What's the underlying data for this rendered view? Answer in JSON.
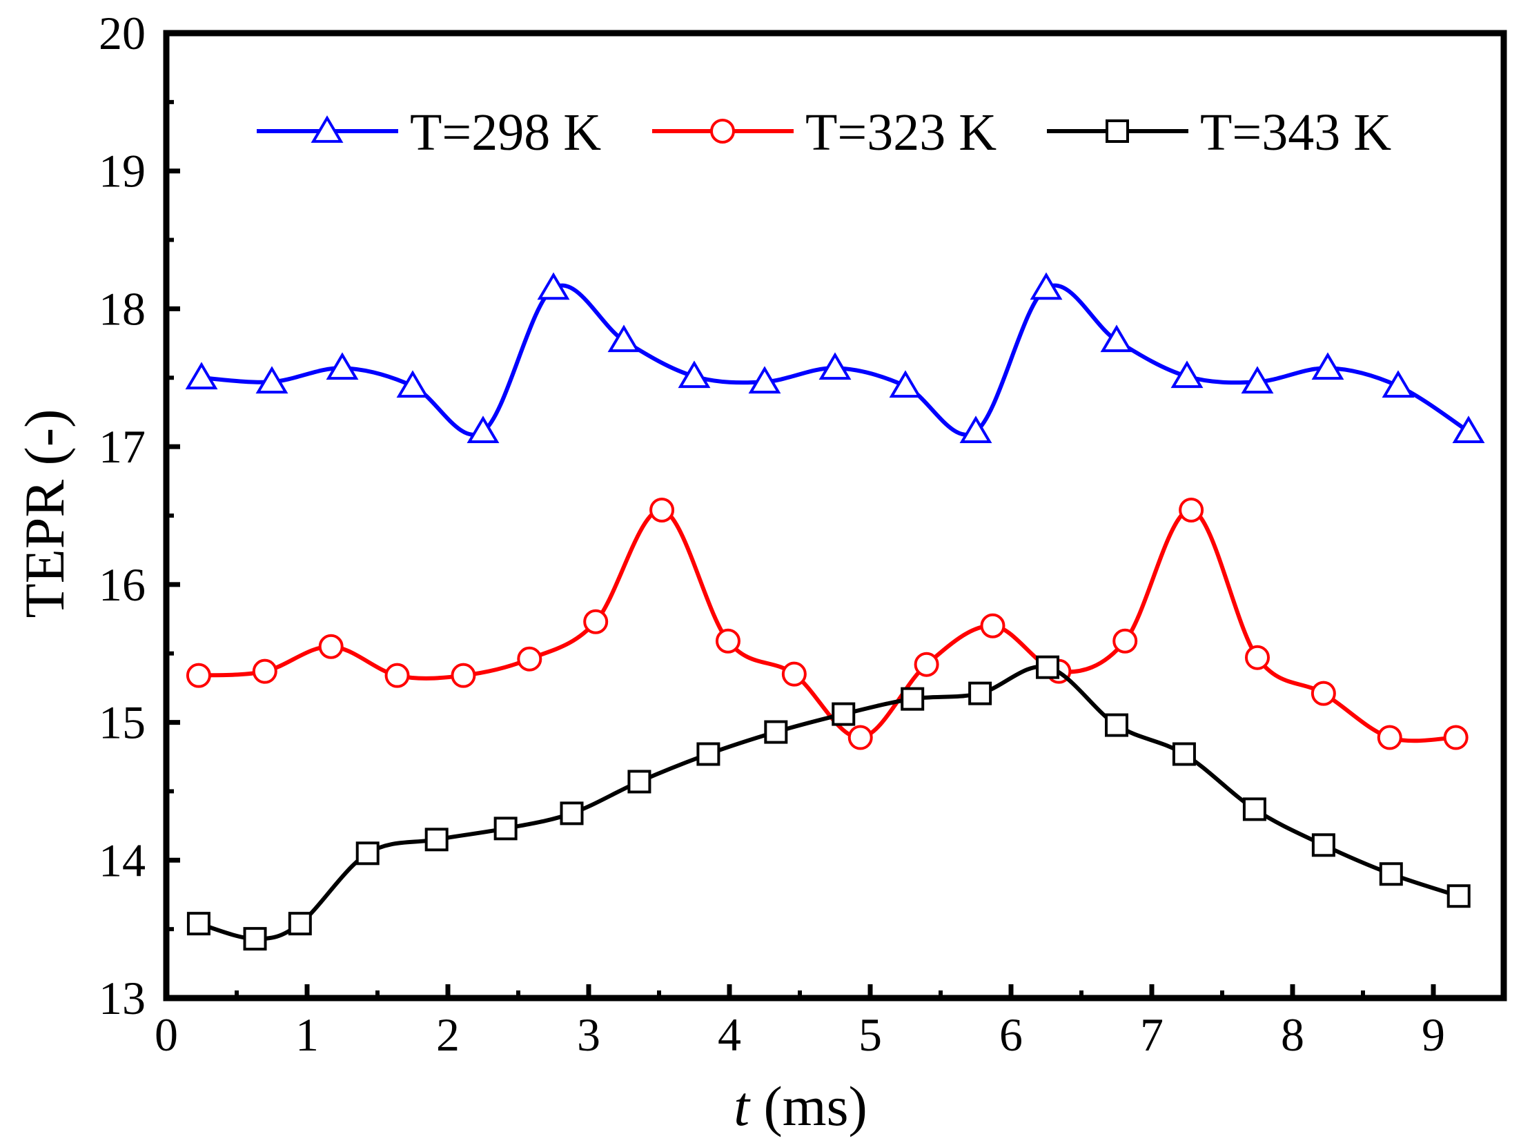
{
  "chart_data": {
    "type": "line",
    "title": "",
    "xlabel_italic": "t",
    "xlabel_rest": " (ms)",
    "ylabel": "TEPR (-)",
    "xlim": [
      0,
      9.5
    ],
    "ylim": [
      13,
      20
    ],
    "xticks": [
      0,
      1,
      2,
      3,
      4,
      5,
      6,
      7,
      8,
      9
    ],
    "yticks": [
      13,
      14,
      15,
      16,
      17,
      18,
      19,
      20
    ],
    "legend_position": "top",
    "series": [
      {
        "name": "T=298 K",
        "color": "#0000ff",
        "marker": "triangle",
        "x": [
          0.25,
          0.75,
          1.25,
          1.75,
          2.25,
          2.75,
          3.25,
          3.75,
          4.25,
          4.75,
          5.25,
          5.75,
          6.25,
          6.75,
          7.25,
          7.75,
          8.25,
          8.75,
          9.25
        ],
        "y": [
          17.5,
          17.47,
          17.57,
          17.44,
          17.11,
          18.15,
          17.77,
          17.51,
          17.47,
          17.57,
          17.44,
          17.11,
          18.15,
          17.77,
          17.51,
          17.47,
          17.57,
          17.44,
          17.11
        ]
      },
      {
        "name": "T=323 K",
        "color": "#ff0000",
        "marker": "circle",
        "x": [
          0.23,
          0.7,
          1.17,
          1.64,
          2.11,
          2.58,
          3.05,
          3.52,
          3.99,
          4.46,
          4.93,
          5.4,
          5.87,
          6.34,
          6.81,
          7.28,
          7.75,
          8.22,
          8.69,
          9.16
        ],
        "y": [
          15.34,
          15.37,
          15.55,
          15.34,
          15.34,
          15.46,
          15.73,
          16.54,
          15.59,
          15.35,
          14.89,
          15.42,
          15.7,
          15.37,
          15.59,
          16.54,
          15.47,
          15.21,
          14.89,
          14.89
        ]
      },
      {
        "name": "T=343 K",
        "color": "#000000",
        "marker": "square",
        "x": [
          0.23,
          0.63,
          0.95,
          1.43,
          1.92,
          2.41,
          2.88,
          3.36,
          3.85,
          4.33,
          4.81,
          5.3,
          5.78,
          6.26,
          6.75,
          7.23,
          7.73,
          8.22,
          8.7,
          9.18
        ],
        "y": [
          13.54,
          13.43,
          13.54,
          14.05,
          14.15,
          14.23,
          14.34,
          14.57,
          14.77,
          14.93,
          15.06,
          15.17,
          15.21,
          15.4,
          14.98,
          14.77,
          14.37,
          14.11,
          13.9,
          13.74
        ]
      }
    ]
  }
}
